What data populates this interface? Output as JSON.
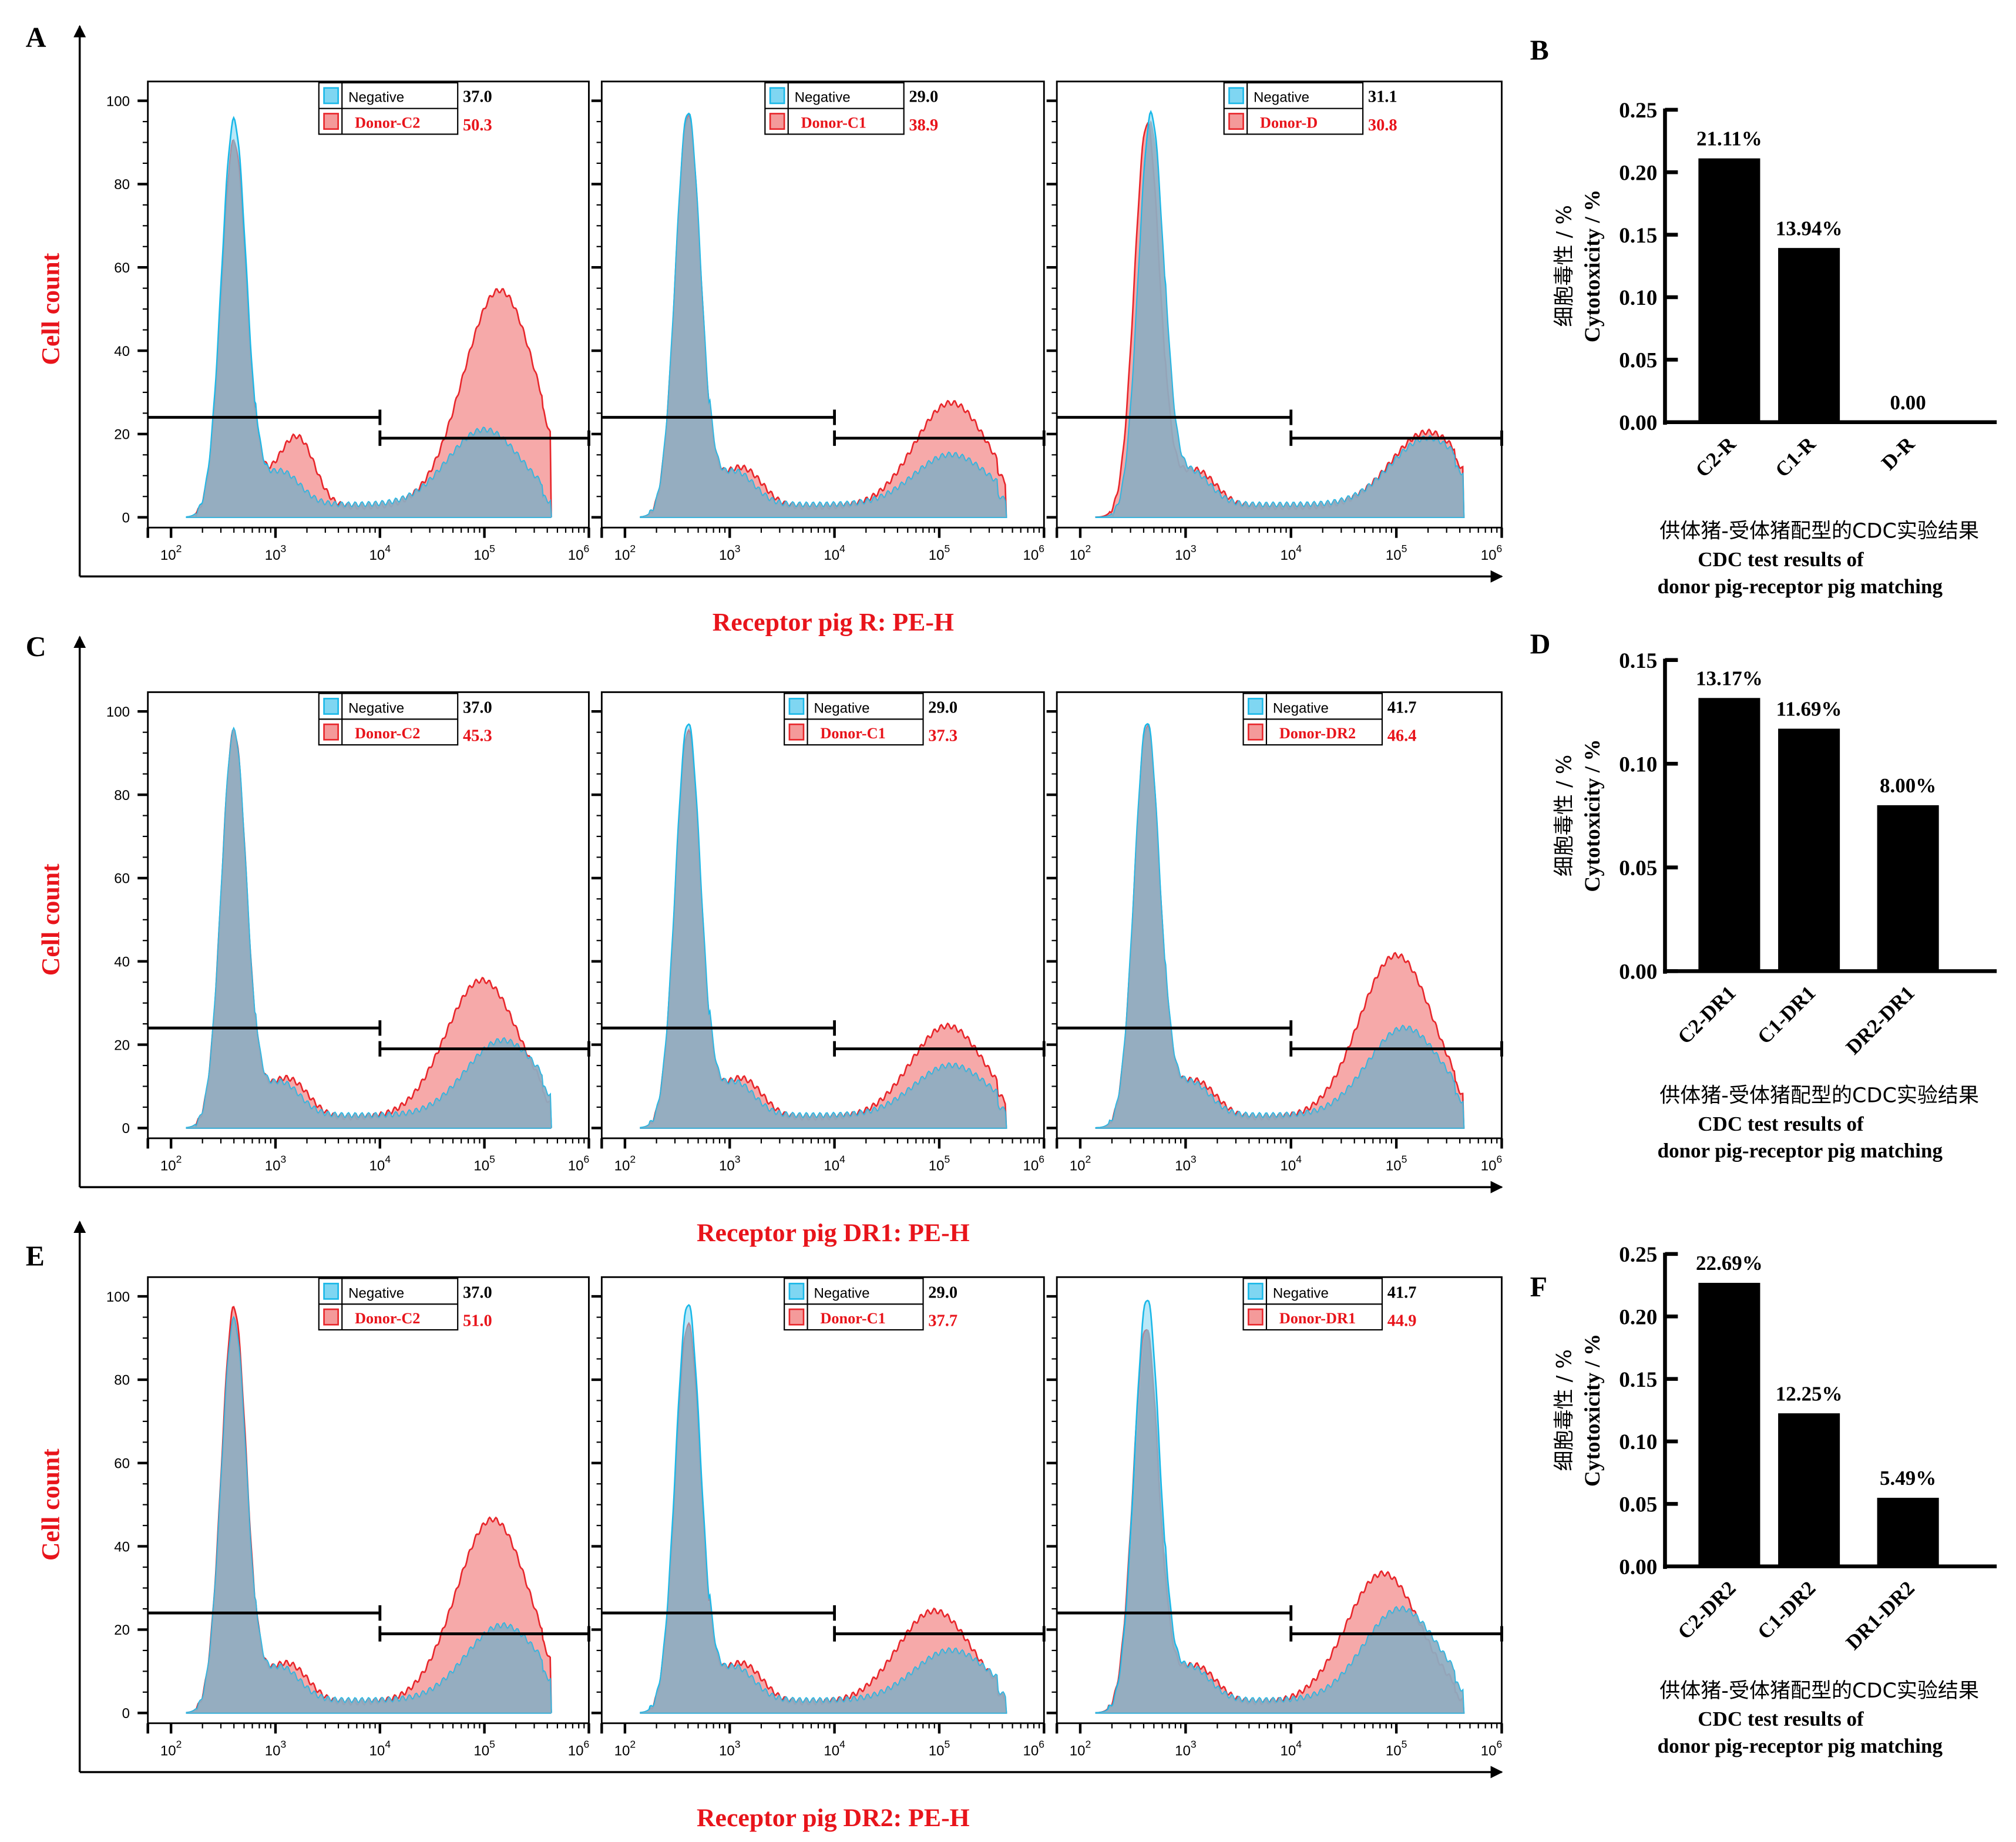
{
  "figure": {
    "panel_letters": [
      "A",
      "B",
      "C",
      "D",
      "E",
      "F"
    ]
  },
  "colors": {
    "negative_line": "#1ab8e8",
    "negative_fill": "#7fd6f2",
    "donor_line": "#e8262b",
    "donor_fill": "#f49a9a",
    "overlap_fill": "#8fa9bd",
    "label_red": "#e8141b",
    "bar": "#000000"
  },
  "chart_data": [
    {
      "id": "A",
      "type": "area",
      "title": "",
      "ylabel": "Cell count",
      "xlabel": "Receptor pig R: PE-H",
      "x_scale": "log",
      "xlim": [
        60,
        1000000
      ],
      "ylim": [
        0,
        100
      ],
      "xticks": [
        "10^2",
        "10^3",
        "10^4",
        "10^5",
        "10^6"
      ],
      "yticks": [
        0,
        20,
        40,
        60,
        80,
        100
      ],
      "gate_split": 10000,
      "gate_levels": {
        "left": 24,
        "right": 19
      },
      "subplots": [
        {
          "legend": [
            {
              "name": "Negative",
              "value": "37.0"
            },
            {
              "name": "Donor-C2",
              "value": "50.3"
            }
          ],
          "negative_peaks": [
            {
              "x": 400,
              "h": 95
            },
            {
              "x": 100000,
              "h": 18
            }
          ],
          "donor_peaks": [
            {
              "x": 400,
              "h": 90
            },
            {
              "x": 140000,
              "h": 52
            }
          ],
          "donor_shoulder": 12
        },
        {
          "legend": [
            {
              "name": "Negative",
              "value": "29.0"
            },
            {
              "name": "Donor-C1",
              "value": "38.9"
            }
          ],
          "negative_peaks": [
            {
              "x": 400,
              "h": 97
            },
            {
              "x": 130000,
              "h": 12
            }
          ],
          "donor_peaks": [
            {
              "x": 400,
              "h": 96
            },
            {
              "x": 130000,
              "h": 25
            }
          ],
          "donor_shoulder": 3
        },
        {
          "legend": [
            {
              "name": "Negative",
              "value": "31.1"
            },
            {
              "name": "Donor-D",
              "value": "30.8"
            }
          ],
          "negative_peaks": [
            {
              "x": 470,
              "h": 96
            },
            {
              "x": 200000,
              "h": 16
            }
          ],
          "donor_peaks": [
            {
              "x": 430,
              "h": 94
            },
            {
              "x": 200000,
              "h": 18
            }
          ],
          "donor_shoulder": 2
        }
      ]
    },
    {
      "id": "B",
      "type": "bar",
      "title": "",
      "ylabel": [
        "细胞毒性 / %",
        "Cytotoxicity / %"
      ],
      "xlabel": [
        "供体猪-受体猪配型的CDC实验结果",
        "CDC test results of",
        "donor pig-receptor pig matching"
      ],
      "categories": [
        "C2-R",
        "C1-R",
        "D-R"
      ],
      "values": [
        0.2111,
        0.1394,
        0.0
      ],
      "data_labels": [
        "21.11%",
        "13.94%",
        "0.00"
      ],
      "ylim": [
        0,
        0.25
      ],
      "yticks": [
        "0.00",
        "0.05",
        "0.10",
        "0.15",
        "0.20",
        "0.25"
      ]
    },
    {
      "id": "C",
      "type": "area",
      "title": "",
      "ylabel": "Cell count",
      "xlabel": "Receptor pig DR1: PE-H",
      "x_scale": "log",
      "xlim": [
        60,
        1000000
      ],
      "ylim": [
        0,
        100
      ],
      "xticks": [
        "10^2",
        "10^3",
        "10^4",
        "10^5",
        "10^6"
      ],
      "yticks": [
        0,
        20,
        40,
        60,
        80,
        100
      ],
      "gate_split": 10000,
      "gate_levels": {
        "left": 24,
        "right": 19
      },
      "subplots": [
        {
          "legend": [
            {
              "name": "Negative",
              "value": "37.0"
            },
            {
              "name": "Donor-C2",
              "value": "45.3"
            }
          ],
          "negative_peaks": [
            {
              "x": 400,
              "h": 95
            },
            {
              "x": 150000,
              "h": 18
            }
          ],
          "donor_peaks": [
            {
              "x": 400,
              "h": 95
            },
            {
              "x": 95000,
              "h": 33
            }
          ],
          "donor_shoulder": 3
        },
        {
          "legend": [
            {
              "name": "Negative",
              "value": "29.0"
            },
            {
              "name": "Donor-C1",
              "value": "37.3"
            }
          ],
          "negative_peaks": [
            {
              "x": 400,
              "h": 97
            },
            {
              "x": 130000,
              "h": 12
            }
          ],
          "donor_peaks": [
            {
              "x": 400,
              "h": 95
            },
            {
              "x": 120000,
              "h": 22
            }
          ],
          "donor_shoulder": 3
        },
        {
          "legend": [
            {
              "name": "Negative",
              "value": "41.7"
            },
            {
              "name": "Donor-DR2",
              "value": "46.4"
            }
          ],
          "negative_peaks": [
            {
              "x": 430,
              "h": 97
            },
            {
              "x": 120000,
              "h": 21
            }
          ],
          "donor_peaks": [
            {
              "x": 430,
              "h": 96
            },
            {
              "x": 100000,
              "h": 39
            }
          ],
          "donor_shoulder": 2
        }
      ]
    },
    {
      "id": "D",
      "type": "bar",
      "title": "",
      "ylabel": [
        "细胞毒性 / %",
        "Cytotoxicity / %"
      ],
      "xlabel": [
        "供体猪-受体猪配型的CDC实验结果",
        "CDC test results of",
        "donor pig-receptor pig matching"
      ],
      "categories": [
        "C2-DR1",
        "C1-DR1",
        "DR2-DR1"
      ],
      "values": [
        0.1317,
        0.1169,
        0.08
      ],
      "data_labels": [
        "13.17%",
        "11.69%",
        "8.00%"
      ],
      "ylim": [
        0,
        0.15
      ],
      "yticks": [
        "0.00",
        "0.05",
        "0.10",
        "0.15"
      ]
    },
    {
      "id": "E",
      "type": "area",
      "title": "",
      "ylabel": "Cell count",
      "xlabel": "Receptor pig DR2: PE-H",
      "x_scale": "log",
      "xlim": [
        60,
        1000000
      ],
      "ylim": [
        0,
        100
      ],
      "xticks": [
        "10^2",
        "10^3",
        "10^4",
        "10^5",
        "10^6"
      ],
      "yticks": [
        0,
        20,
        40,
        60,
        80,
        100
      ],
      "gate_split": 10000,
      "gate_levels": {
        "left": 24,
        "right": 19
      },
      "subplots": [
        {
          "legend": [
            {
              "name": "Negative",
              "value": "37.0"
            },
            {
              "name": "Donor-C2",
              "value": "51.0"
            }
          ],
          "negative_peaks": [
            {
              "x": 400,
              "h": 94
            },
            {
              "x": 150000,
              "h": 18
            }
          ],
          "donor_peaks": [
            {
              "x": 400,
              "h": 97
            },
            {
              "x": 120000,
              "h": 44
            }
          ],
          "donor_shoulder": 3
        },
        {
          "legend": [
            {
              "name": "Negative",
              "value": "29.0"
            },
            {
              "name": "Donor-C1",
              "value": "37.7"
            }
          ],
          "negative_peaks": [
            {
              "x": 400,
              "h": 98
            },
            {
              "x": 130000,
              "h": 12
            }
          ],
          "donor_peaks": [
            {
              "x": 400,
              "h": 93
            },
            {
              "x": 90000,
              "h": 22
            }
          ],
          "donor_shoulder": 3
        },
        {
          "legend": [
            {
              "name": "Negative",
              "value": "41.7"
            },
            {
              "name": "Donor-DR1",
              "value": "44.9"
            }
          ],
          "negative_peaks": [
            {
              "x": 430,
              "h": 99
            },
            {
              "x": 110000,
              "h": 22
            }
          ],
          "donor_peaks": [
            {
              "x": 420,
              "h": 92
            },
            {
              "x": 75000,
              "h": 31
            }
          ],
          "donor_shoulder": 2
        }
      ]
    },
    {
      "id": "F",
      "type": "bar",
      "title": "",
      "ylabel": [
        "细胞毒性 / %",
        "Cytotoxicity / %"
      ],
      "xlabel": [
        "供体猪-受体猪配型的CDC实验结果",
        "CDC test results of",
        "donor pig-receptor pig matching"
      ],
      "categories": [
        "C2-DR2",
        "C1-DR2",
        "DR1-DR2"
      ],
      "values": [
        0.2269,
        0.1225,
        0.0549
      ],
      "data_labels": [
        "22.69%",
        "12.25%",
        "5.49%"
      ],
      "ylim": [
        0,
        0.25
      ],
      "yticks": [
        "0.00",
        "0.05",
        "0.10",
        "0.15",
        "0.20",
        "0.25"
      ]
    }
  ]
}
